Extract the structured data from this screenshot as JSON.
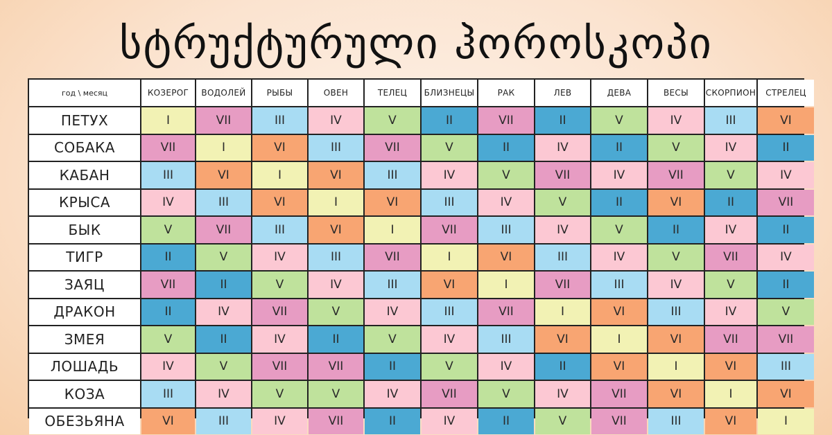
{
  "title": "სტრუქტურული ჰოროსკოპი",
  "table": {
    "corner": "год \\ месяц",
    "months": [
      "КОЗЕРОГ",
      "ВОДОЛЕЙ",
      "РЫБЫ",
      "ОВЕН",
      "ТЕЛЕЦ",
      "БЛИЗНЕЦЫ",
      "РАК",
      "ЛЕВ",
      "ДЕВА",
      "ВЕСЫ",
      "СКОРПИОН",
      "СТРЕЛЕЦ"
    ],
    "rows": [
      {
        "animal": "ПЕТУХ",
        "values": [
          "I",
          "VII",
          "III",
          "IV",
          "V",
          "II",
          "VII",
          "II",
          "V",
          "IV",
          "III",
          "VI"
        ]
      },
      {
        "animal": "СОБАКА",
        "values": [
          "VII",
          "I",
          "VI",
          "III",
          "VII",
          "V",
          "II",
          "IV",
          "II",
          "V",
          "IV",
          "II"
        ]
      },
      {
        "animal": "КАБАН",
        "values": [
          "III",
          "VI",
          "I",
          "VI",
          "III",
          "IV",
          "V",
          "VII",
          "IV",
          "VII",
          "V",
          "IV"
        ]
      },
      {
        "animal": "КРЫСА",
        "values": [
          "IV",
          "III",
          "VI",
          "I",
          "VI",
          "III",
          "IV",
          "V",
          "II",
          "VI",
          "II",
          "VII"
        ]
      },
      {
        "animal": "БЫК",
        "values": [
          "V",
          "VII",
          "III",
          "VI",
          "I",
          "VII",
          "III",
          "IV",
          "V",
          "II",
          "IV",
          "II"
        ]
      },
      {
        "animal": "ТИГР",
        "values": [
          "II",
          "V",
          "IV",
          "III",
          "VII",
          "I",
          "VI",
          "III",
          "IV",
          "V",
          "VII",
          "IV"
        ]
      },
      {
        "animal": "ЗАЯЦ",
        "values": [
          "VII",
          "II",
          "V",
          "IV",
          "III",
          "VI",
          "I",
          "VII",
          "III",
          "IV",
          "V",
          "II"
        ]
      },
      {
        "animal": "ДРАКОН",
        "values": [
          "II",
          "IV",
          "VII",
          "V",
          "IV",
          "III",
          "VII",
          "I",
          "VI",
          "III",
          "IV",
          "V"
        ]
      },
      {
        "animal": "ЗМЕЯ",
        "values": [
          "V",
          "II",
          "IV",
          "II",
          "V",
          "IV",
          "III",
          "VI",
          "I",
          "VI",
          "VII",
          "VII"
        ]
      },
      {
        "animal": "ЛОШАДЬ",
        "values": [
          "IV",
          "V",
          "VII",
          "VII",
          "II",
          "V",
          "IV",
          "II",
          "VI",
          "I",
          "VI",
          "III"
        ]
      },
      {
        "animal": "КОЗА",
        "values": [
          "III",
          "IV",
          "V",
          "V",
          "IV",
          "VII",
          "V",
          "IV",
          "VII",
          "VI",
          "I",
          "VI"
        ]
      },
      {
        "animal": "ОБЕЗЬЯНА",
        "values": [
          "VI",
          "III",
          "IV",
          "VII",
          "II",
          "IV",
          "II",
          "V",
          "VII",
          "III",
          "VI",
          "I"
        ]
      }
    ]
  },
  "value_colors": {
    "I": "#f2f2b4",
    "II": "#4ba9d3",
    "III": "#a8dcf3",
    "IV": "#fcc8d3",
    "V": "#bfe29c",
    "VI": "#f8a572",
    "VII": "#e79cc3"
  }
}
